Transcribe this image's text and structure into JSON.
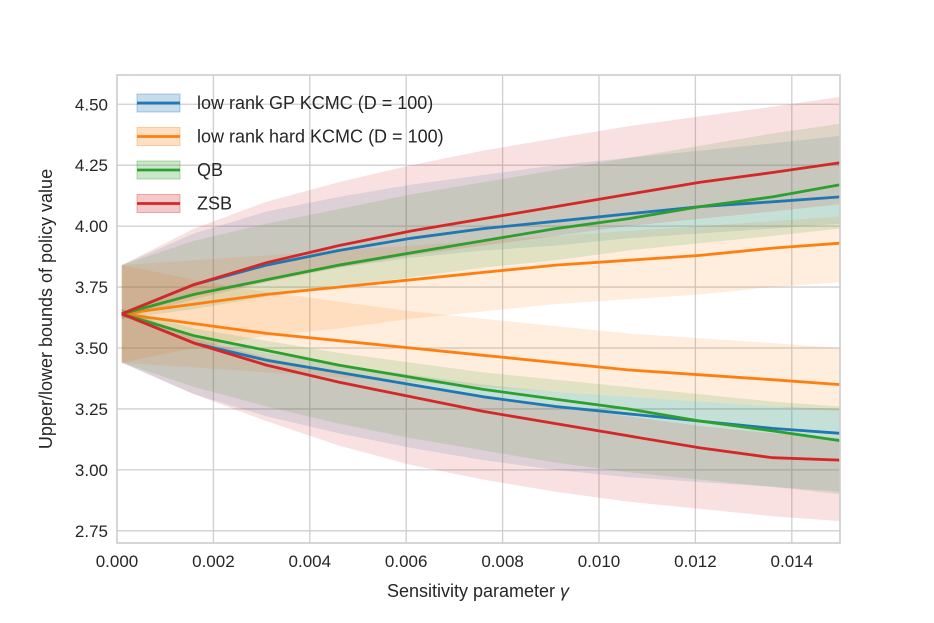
{
  "chart_data": {
    "type": "line",
    "title": "",
    "xlabel": "Sensitivity parameter",
    "xlabel_symbol": "γ",
    "ylabel": "Upper/lower bounds of policy value",
    "xlim": [
      0.0,
      0.015
    ],
    "ylim": [
      2.7,
      4.62
    ],
    "xticks": [
      0.0,
      0.002,
      0.004,
      0.006,
      0.008,
      0.01,
      0.012,
      0.014
    ],
    "xtick_labels": [
      "0.000",
      "0.002",
      "0.004",
      "0.006",
      "0.008",
      "0.010",
      "0.012",
      "0.014"
    ],
    "yticks": [
      2.75,
      3.0,
      3.25,
      3.5,
      3.75,
      4.0,
      4.25,
      4.5
    ],
    "ytick_labels": [
      "2.75",
      "3.00",
      "3.25",
      "3.50",
      "3.75",
      "4.00",
      "4.25",
      "4.50"
    ],
    "grid": true,
    "legend_position": "top-left",
    "x": [
      0.0001,
      0.0016,
      0.0031,
      0.0046,
      0.0061,
      0.0076,
      0.0091,
      0.0106,
      0.0121,
      0.0136,
      0.015
    ],
    "series": [
      {
        "name": "low rank GP KCMC",
        "name_suffix": "(D = 100)",
        "color": "#1f77b4",
        "upper": [
          3.64,
          3.76,
          3.84,
          3.9,
          3.95,
          3.99,
          4.02,
          4.05,
          4.08,
          4.1,
          4.12
        ],
        "lower": [
          3.64,
          3.52,
          3.45,
          3.4,
          3.35,
          3.3,
          3.26,
          3.23,
          3.2,
          3.17,
          3.15
        ],
        "upper_band": [
          [
            3.84,
            3.62
          ],
          [
            3.97,
            3.72
          ],
          [
            4.06,
            3.78
          ],
          [
            4.12,
            3.83
          ],
          [
            4.17,
            3.87
          ],
          [
            4.21,
            3.9
          ],
          [
            4.25,
            3.92
          ],
          [
            4.28,
            3.95
          ],
          [
            4.31,
            3.97
          ],
          [
            4.34,
            3.99
          ],
          [
            4.37,
            4.01
          ]
        ],
        "lower_band": [
          [
            3.66,
            3.44
          ],
          [
            3.55,
            3.31
          ],
          [
            3.48,
            3.22
          ],
          [
            3.43,
            3.15
          ],
          [
            3.39,
            3.09
          ],
          [
            3.35,
            3.04
          ],
          [
            3.32,
            3.0
          ],
          [
            3.3,
            2.97
          ],
          [
            3.28,
            2.95
          ],
          [
            3.26,
            2.93
          ],
          [
            3.25,
            2.91
          ]
        ]
      },
      {
        "name": "low rank hard KCMC",
        "name_suffix": "(D = 100)",
        "color": "#ff7f0e",
        "upper": [
          3.64,
          3.68,
          3.72,
          3.75,
          3.78,
          3.81,
          3.84,
          3.86,
          3.88,
          3.91,
          3.93
        ],
        "lower": [
          3.64,
          3.6,
          3.56,
          3.53,
          3.5,
          3.47,
          3.44,
          3.41,
          3.39,
          3.37,
          3.35
        ],
        "upper_band": [
          [
            3.84,
            3.44
          ],
          [
            3.86,
            3.5
          ],
          [
            3.88,
            3.55
          ],
          [
            3.9,
            3.58
          ],
          [
            3.92,
            3.62
          ],
          [
            3.94,
            3.65
          ],
          [
            3.96,
            3.68
          ],
          [
            3.98,
            3.7
          ],
          [
            4.0,
            3.72
          ],
          [
            4.02,
            3.75
          ],
          [
            4.04,
            3.77
          ]
        ],
        "lower_band": [
          [
            3.84,
            3.44
          ],
          [
            3.78,
            3.42
          ],
          [
            3.73,
            3.4
          ],
          [
            3.69,
            3.38
          ],
          [
            3.65,
            3.36
          ],
          [
            3.62,
            3.34
          ],
          [
            3.59,
            3.32
          ],
          [
            3.56,
            3.3
          ],
          [
            3.54,
            3.28
          ],
          [
            3.52,
            3.26
          ],
          [
            3.5,
            3.24
          ]
        ]
      },
      {
        "name": "QB",
        "color": "#2ca02c",
        "upper": [
          3.64,
          3.72,
          3.78,
          3.84,
          3.89,
          3.94,
          3.99,
          4.03,
          4.08,
          4.12,
          4.17
        ],
        "lower": [
          3.64,
          3.55,
          3.49,
          3.43,
          3.38,
          3.33,
          3.29,
          3.25,
          3.2,
          3.16,
          3.12
        ],
        "upper_band": [
          [
            3.84,
            3.62
          ],
          [
            3.94,
            3.66
          ],
          [
            4.01,
            3.71
          ],
          [
            4.07,
            3.75
          ],
          [
            4.13,
            3.79
          ],
          [
            4.18,
            3.83
          ],
          [
            4.23,
            3.86
          ],
          [
            4.28,
            3.9
          ],
          [
            4.33,
            3.93
          ],
          [
            4.38,
            3.96
          ],
          [
            4.42,
            3.99
          ]
        ],
        "lower_band": [
          [
            3.66,
            3.44
          ],
          [
            3.58,
            3.34
          ],
          [
            3.53,
            3.26
          ],
          [
            3.48,
            3.19
          ],
          [
            3.44,
            3.13
          ],
          [
            3.4,
            3.08
          ],
          [
            3.37,
            3.03
          ],
          [
            3.34,
            2.99
          ],
          [
            3.31,
            2.96
          ],
          [
            3.28,
            2.93
          ],
          [
            3.26,
            2.9
          ]
        ]
      },
      {
        "name": "ZSB",
        "color": "#d62728",
        "upper": [
          3.64,
          3.76,
          3.85,
          3.92,
          3.98,
          4.03,
          4.08,
          4.13,
          4.18,
          4.22,
          4.26
        ],
        "lower": [
          3.64,
          3.52,
          3.43,
          3.36,
          3.3,
          3.24,
          3.19,
          3.14,
          3.09,
          3.05,
          3.04
        ],
        "upper_band": [
          [
            3.84,
            3.62
          ],
          [
            3.99,
            3.7
          ],
          [
            4.1,
            3.77
          ],
          [
            4.18,
            3.83
          ],
          [
            4.25,
            3.88
          ],
          [
            4.31,
            3.92
          ],
          [
            4.36,
            3.96
          ],
          [
            4.41,
            4.0
          ],
          [
            4.45,
            4.03
          ],
          [
            4.49,
            4.06
          ],
          [
            4.53,
            4.09
          ]
        ],
        "lower_band": [
          [
            3.66,
            3.44
          ],
          [
            3.54,
            3.31
          ],
          [
            3.46,
            3.2
          ],
          [
            3.4,
            3.1
          ],
          [
            3.35,
            3.02
          ],
          [
            3.3,
            2.96
          ],
          [
            3.26,
            2.91
          ],
          [
            3.22,
            2.87
          ],
          [
            3.18,
            2.84
          ],
          [
            3.15,
            2.81
          ],
          [
            3.13,
            2.79
          ]
        ]
      }
    ]
  }
}
